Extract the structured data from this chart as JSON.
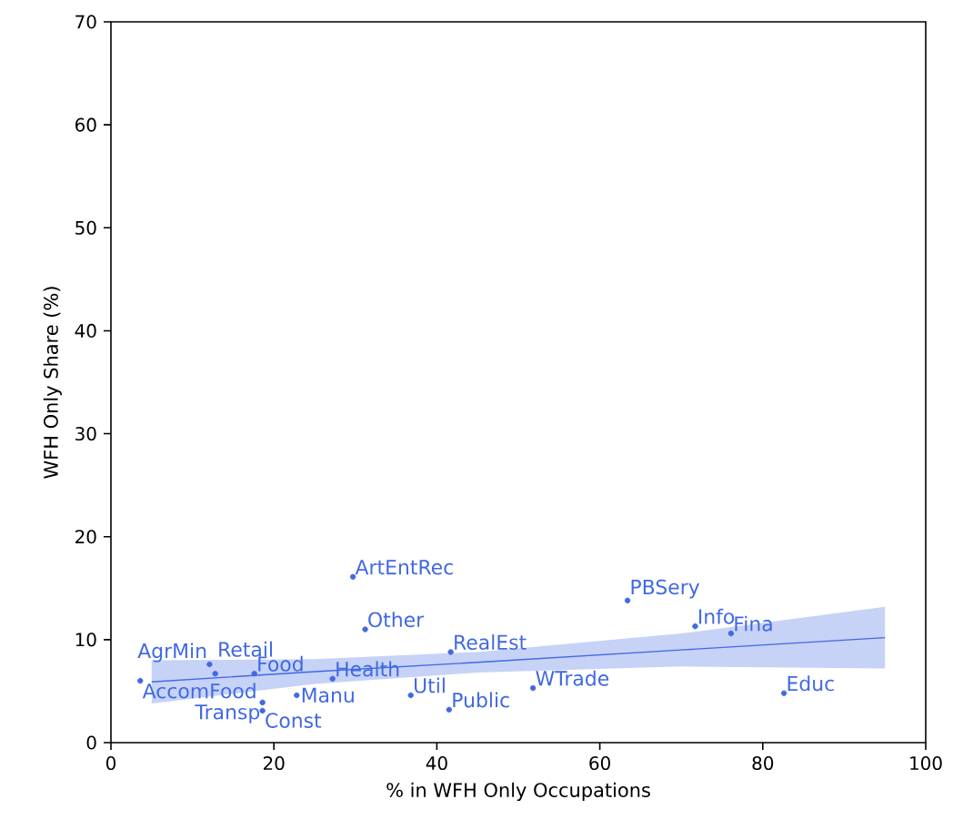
{
  "chart_data": {
    "type": "scatter",
    "xlabel": "% in WFH Only Occupations",
    "ylabel": "WFH Only Share (%)",
    "xlim": [
      0,
      100
    ],
    "ylim": [
      0,
      70
    ],
    "xticks": [
      0,
      20,
      40,
      60,
      80,
      100
    ],
    "yticks": [
      0,
      10,
      20,
      30,
      40,
      50,
      60,
      70
    ],
    "grid": false,
    "series": [
      {
        "marker": "circle",
        "color": "#4169e1",
        "x": [
          3.6,
          29.7,
          31.2,
          41.7,
          36.8,
          41.5,
          18.6,
          18.6,
          12.1,
          12.8,
          17.6,
          27.2,
          22.8,
          63.4,
          71.7,
          76.1,
          82.6,
          51.8
        ],
        "values": [
          6.0,
          16.1,
          11.0,
          8.8,
          4.6,
          3.2,
          3.9,
          3.1,
          7.6,
          6.7,
          6.7,
          6.2,
          4.6,
          13.8,
          11.3,
          10.6,
          4.8,
          5.3
        ]
      },
      {
        "type": "line",
        "marker": "none",
        "color": "#4169e1",
        "x": [
          5,
          25,
          45,
          70,
          95
        ],
        "values": [
          5.9,
          6.9,
          7.8,
          9.0,
          10.2
        ],
        "lower": [
          3.8,
          5.7,
          6.8,
          7.4,
          7.2
        ],
        "upper": [
          8.0,
          8.1,
          8.8,
          10.6,
          13.2
        ]
      }
    ],
    "annotations": [
      {
        "text": "AccomFood",
        "x": 3.6,
        "y": 6.0
      },
      {
        "text": "ArtEntRec",
        "x": 29.7,
        "y": 16.1
      },
      {
        "text": "Other",
        "x": 31.2,
        "y": 11.0
      },
      {
        "text": "RealEst",
        "x": 41.7,
        "y": 8.8
      },
      {
        "text": "Util",
        "x": 36.8,
        "y": 4.6
      },
      {
        "text": "Public",
        "x": 41.5,
        "y": 3.2
      },
      {
        "text": "Transp",
        "x": 18.6,
        "y": 3.9
      },
      {
        "text": "Const",
        "x": 18.6,
        "y": 3.1
      },
      {
        "text": "AgrMin",
        "x": 12.1,
        "y": 7.6
      },
      {
        "text": "Retail",
        "x": 12.8,
        "y": 6.7
      },
      {
        "text": "Food",
        "x": 17.6,
        "y": 6.7
      },
      {
        "text": "Health",
        "x": 27.2,
        "y": 6.2
      },
      {
        "text": "Manu",
        "x": 22.8,
        "y": 4.6
      },
      {
        "text": "PBSery",
        "x": 63.4,
        "y": 13.8
      },
      {
        "text": "Info",
        "x": 71.7,
        "y": 11.3
      },
      {
        "text": "Fina",
        "x": 76.1,
        "y": 10.6
      },
      {
        "text": "Educ",
        "x": 82.6,
        "y": 4.8
      },
      {
        "text": "WTrade",
        "x": 51.8,
        "y": 5.3
      }
    ]
  }
}
